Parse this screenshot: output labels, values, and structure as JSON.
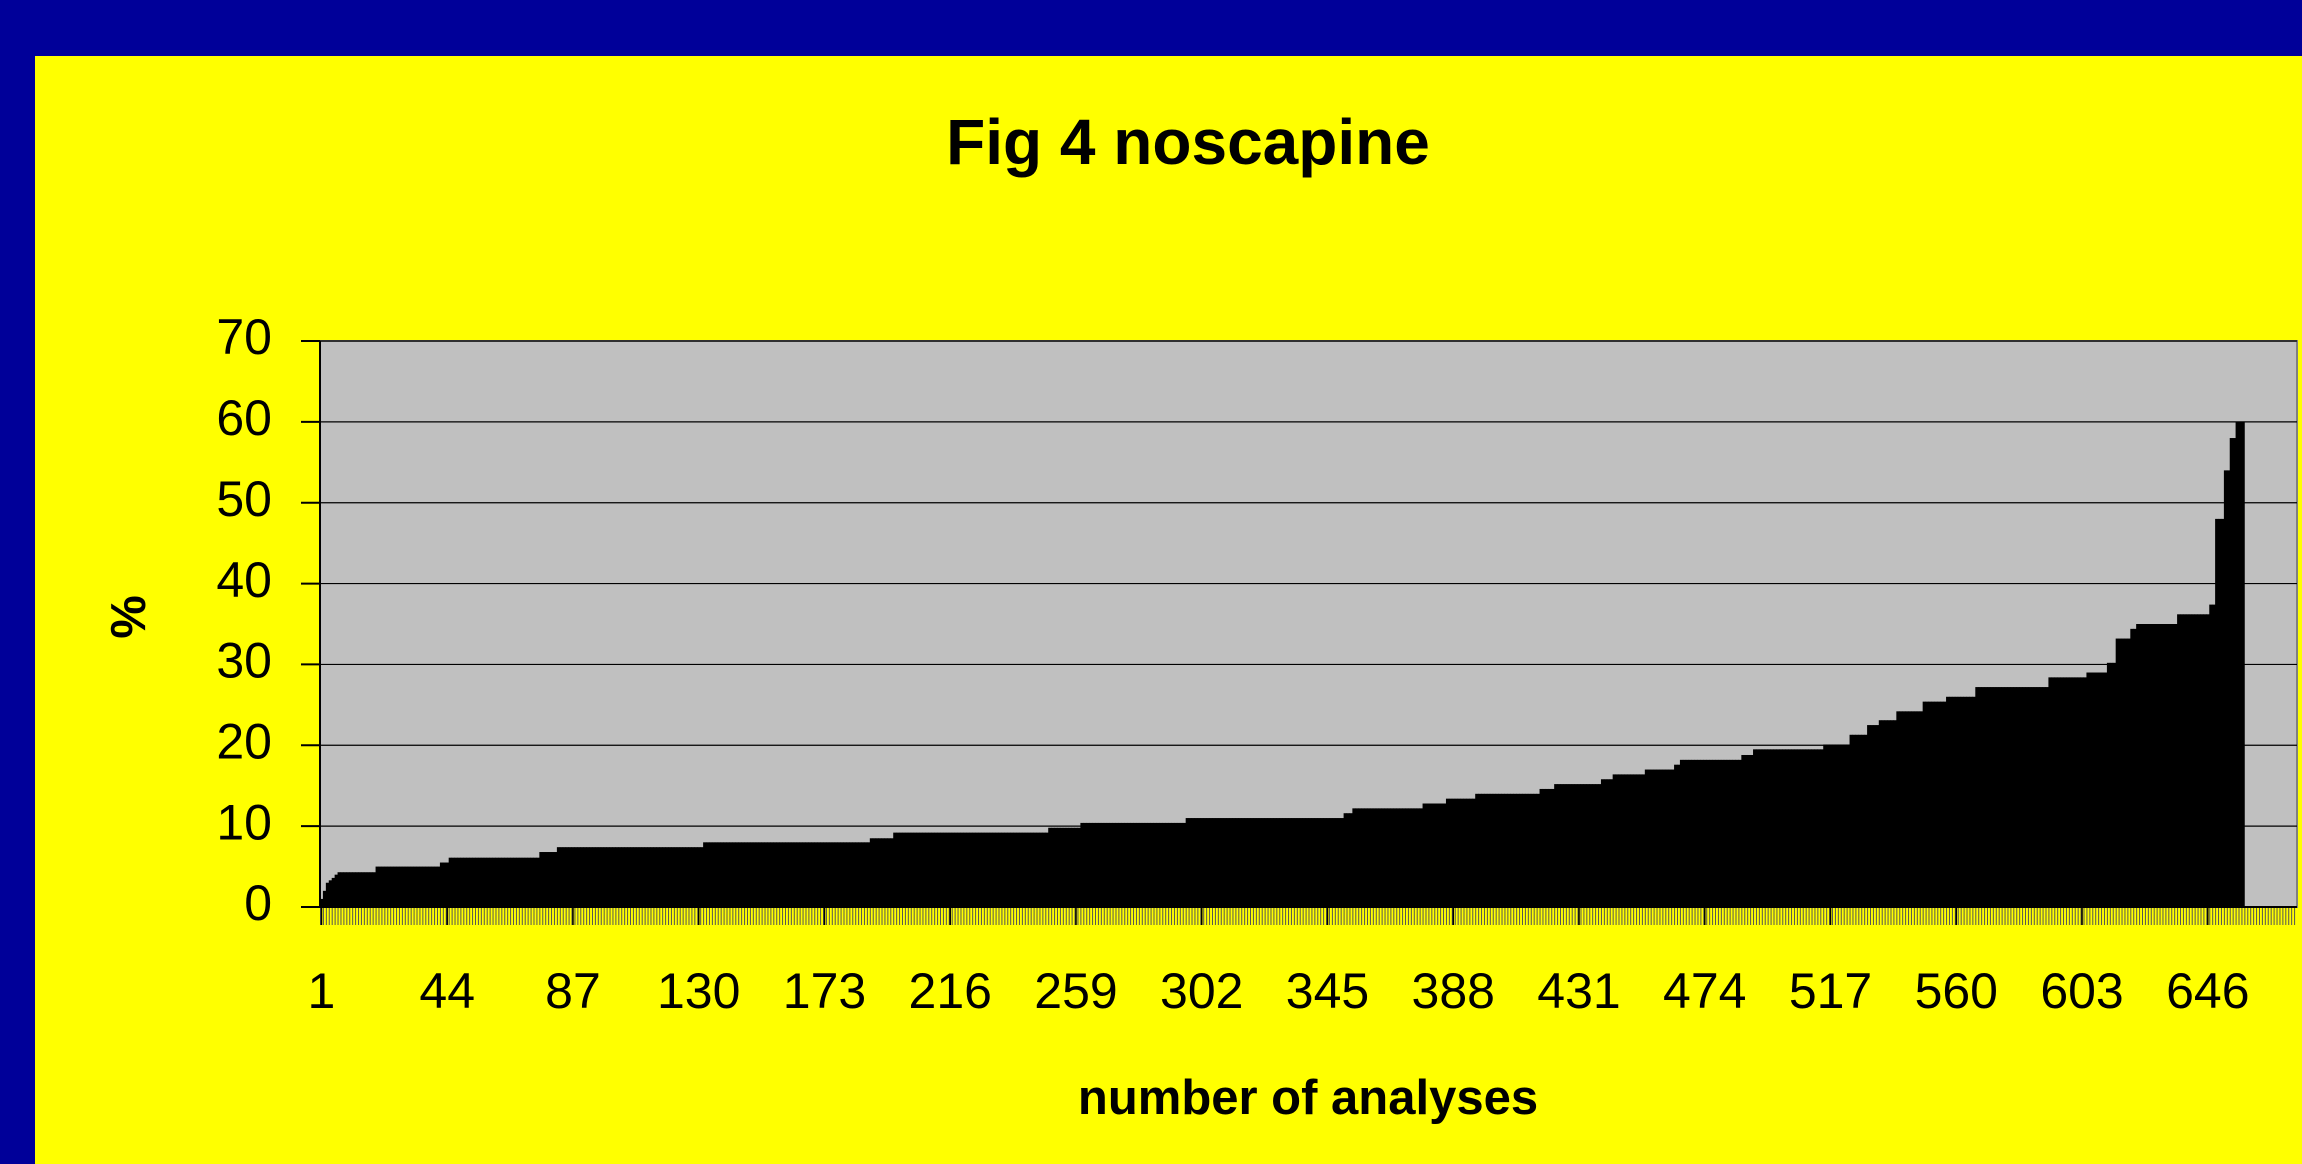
{
  "chart_data": {
    "type": "bar",
    "title": "Fig 4 noscapine",
    "xlabel": "number of analyses",
    "ylabel": "%",
    "color": "#000000",
    "xlim": [
      0.5,
      676.5
    ],
    "xticks": [
      1,
      44,
      87,
      130,
      173,
      216,
      259,
      302,
      345,
      388,
      431,
      474,
      517,
      560,
      603,
      646
    ],
    "ylim": [
      0,
      70
    ],
    "yticks": [
      0,
      10,
      20,
      30,
      40,
      50,
      60,
      70
    ],
    "grid": true,
    "values": [
      1,
      2,
      3,
      3.3,
      3.6,
      4,
      4.3,
      4.3,
      4.3,
      4.3,
      4.3,
      4.3,
      4.3,
      4.3,
      4.3,
      4.3,
      4.3,
      4.3,
      4.3,
      5,
      5,
      5,
      5,
      5,
      5,
      5,
      5,
      5,
      5,
      5,
      5,
      5,
      5,
      5,
      5,
      5,
      5,
      5,
      5,
      5,
      5,
      5.5,
      5.5,
      5.5,
      6.1,
      6.1,
      6.1,
      6.1,
      6.1,
      6.1,
      6.1,
      6.1,
      6.1,
      6.1,
      6.1,
      6.1,
      6.1,
      6.1,
      6.1,
      6.1,
      6.1,
      6.1,
      6.1,
      6.1,
      6.1,
      6.1,
      6.1,
      6.1,
      6.1,
      6.1,
      6.1,
      6.1,
      6.1,
      6.1,
      6.1,
      6.8,
      6.8,
      6.8,
      6.8,
      6.8,
      6.8,
      7.4,
      7.4,
      7.4,
      7.4,
      7.4,
      7.4,
      7.4,
      7.4,
      7.4,
      7.4,
      7.4,
      7.4,
      7.4,
      7.4,
      7.4,
      7.4,
      7.4,
      7.4,
      7.4,
      7.4,
      7.4,
      7.4,
      7.4,
      7.4,
      7.4,
      7.4,
      7.4,
      7.4,
      7.4,
      7.4,
      7.4,
      7.4,
      7.4,
      7.4,
      7.4,
      7.4,
      7.4,
      7.4,
      7.4,
      7.4,
      7.4,
      7.4,
      7.4,
      7.4,
      7.4,
      7.4,
      7.4,
      7.4,
      7.4,
      7.4,
      8,
      8,
      8,
      8,
      8,
      8,
      8,
      8,
      8,
      8,
      8,
      8,
      8,
      8,
      8,
      8,
      8,
      8,
      8,
      8,
      8,
      8,
      8,
      8,
      8,
      8,
      8,
      8,
      8,
      8,
      8,
      8,
      8,
      8,
      8,
      8,
      8,
      8,
      8,
      8,
      8,
      8,
      8,
      8,
      8,
      8,
      8,
      8,
      8,
      8,
      8,
      8,
      8,
      8,
      8,
      8,
      8,
      8.5,
      8.5,
      8.5,
      8.5,
      8.5,
      8.5,
      8.5,
      8.5,
      9.2,
      9.2,
      9.2,
      9.2,
      9.2,
      9.2,
      9.2,
      9.2,
      9.2,
      9.2,
      9.2,
      9.2,
      9.2,
      9.2,
      9.2,
      9.2,
      9.2,
      9.2,
      9.2,
      9.2,
      9.2,
      9.2,
      9.2,
      9.2,
      9.2,
      9.2,
      9.2,
      9.2,
      9.2,
      9.2,
      9.2,
      9.2,
      9.2,
      9.2,
      9.2,
      9.2,
      9.2,
      9.2,
      9.2,
      9.2,
      9.2,
      9.2,
      9.2,
      9.2,
      9.2,
      9.2,
      9.2,
      9.2,
      9.2,
      9.2,
      9.2,
      9.2,
      9.2,
      9.8,
      9.8,
      9.8,
      9.8,
      9.8,
      9.8,
      9.8,
      9.8,
      9.8,
      9.8,
      9.8,
      10.4,
      10.4,
      10.4,
      10.4,
      10.4,
      10.4,
      10.4,
      10.4,
      10.4,
      10.4,
      10.4,
      10.4,
      10.4,
      10.4,
      10.4,
      10.4,
      10.4,
      10.4,
      10.4,
      10.4,
      10.4,
      10.4,
      10.4,
      10.4,
      10.4,
      10.4,
      10.4,
      10.4,
      10.4,
      10.4,
      10.4,
      10.4,
      10.4,
      10.4,
      10.4,
      10.4,
      11,
      11,
      11,
      11,
      11,
      11,
      11,
      11,
      11,
      11,
      11,
      11,
      11,
      11,
      11,
      11,
      11,
      11,
      11,
      11,
      11,
      11,
      11,
      11,
      11,
      11,
      11,
      11,
      11,
      11,
      11,
      11,
      11,
      11,
      11,
      11,
      11,
      11,
      11,
      11,
      11,
      11,
      11,
      11,
      11,
      11,
      11,
      11,
      11,
      11,
      11,
      11,
      11,
      11,
      11.6,
      11.6,
      11.6,
      12.2,
      12.2,
      12.2,
      12.2,
      12.2,
      12.2,
      12.2,
      12.2,
      12.2,
      12.2,
      12.2,
      12.2,
      12.2,
      12.2,
      12.2,
      12.2,
      12.2,
      12.2,
      12.2,
      12.2,
      12.2,
      12.2,
      12.2,
      12.2,
      12.8,
      12.8,
      12.8,
      12.8,
      12.8,
      12.8,
      12.8,
      12.8,
      13.4,
      13.4,
      13.4,
      13.4,
      13.4,
      13.4,
      13.4,
      13.4,
      13.4,
      13.4,
      14,
      14,
      14,
      14,
      14,
      14,
      14,
      14,
      14,
      14,
      14,
      14,
      14,
      14,
      14,
      14,
      14,
      14,
      14,
      14,
      14,
      14,
      14.6,
      14.6,
      14.6,
      14.6,
      14.6,
      15.2,
      15.2,
      15.2,
      15.2,
      15.2,
      15.2,
      15.2,
      15.2,
      15.2,
      15.2,
      15.2,
      15.2,
      15.2,
      15.2,
      15.2,
      15.2,
      15.8,
      15.8,
      15.8,
      15.8,
      16.4,
      16.4,
      16.4,
      16.4,
      16.4,
      16.4,
      16.4,
      16.4,
      16.4,
      16.4,
      16.4,
      17,
      17,
      17,
      17,
      17,
      17,
      17,
      17,
      17,
      17,
      17.6,
      17.6,
      18.2,
      18.2,
      18.2,
      18.2,
      18.2,
      18.2,
      18.2,
      18.2,
      18.2,
      18.2,
      18.2,
      18.2,
      18.2,
      18.2,
      18.2,
      18.2,
      18.2,
      18.2,
      18.2,
      18.2,
      18.2,
      18.8,
      18.8,
      18.8,
      18.8,
      19.5,
      19.5,
      19.5,
      19.5,
      19.5,
      19.5,
      19.5,
      19.5,
      19.5,
      19.5,
      19.5,
      19.5,
      19.5,
      19.5,
      19.5,
      19.5,
      19.5,
      19.5,
      19.5,
      19.5,
      19.5,
      19.5,
      19.5,
      19.5,
      20.1,
      20.1,
      20.1,
      20.1,
      20.1,
      20.1,
      20.1,
      20.1,
      20.1,
      21.3,
      21.3,
      21.3,
      21.3,
      21.3,
      21.3,
      22.5,
      22.5,
      22.5,
      22.5,
      23.1,
      23.1,
      23.1,
      23.1,
      23.1,
      23.1,
      24.2,
      24.2,
      24.2,
      24.2,
      24.2,
      24.2,
      24.2,
      24.2,
      24.2,
      25.4,
      25.4,
      25.4,
      25.4,
      25.4,
      25.4,
      25.4,
      25.4,
      26,
      26,
      26,
      26,
      26,
      26,
      26,
      26,
      26,
      26,
      27.2,
      27.2,
      27.2,
      27.2,
      27.2,
      27.2,
      27.2,
      27.2,
      27.2,
      27.2,
      27.2,
      27.2,
      27.2,
      27.2,
      27.2,
      27.2,
      27.2,
      27.2,
      27.2,
      27.2,
      27.2,
      27.2,
      27.2,
      27.2,
      27.2,
      28.4,
      28.4,
      28.4,
      28.4,
      28.4,
      28.4,
      28.4,
      28.4,
      28.4,
      28.4,
      28.4,
      28.4,
      28.4,
      29,
      29,
      29,
      29,
      29,
      29,
      29,
      30.2,
      30.2,
      30.2,
      33.2,
      33.2,
      33.2,
      33.2,
      33.2,
      34.4,
      34.4,
      35,
      35,
      35,
      35,
      35,
      35,
      35,
      35,
      35,
      35,
      35,
      35,
      35,
      35,
      36.2,
      36.2,
      36.2,
      36.2,
      36.2,
      36.2,
      36.2,
      36.2,
      36.2,
      36.2,
      36.2,
      37.4,
      37.4,
      48,
      48,
      48,
      54,
      54,
      58,
      58,
      60,
      60,
      60
    ]
  }
}
